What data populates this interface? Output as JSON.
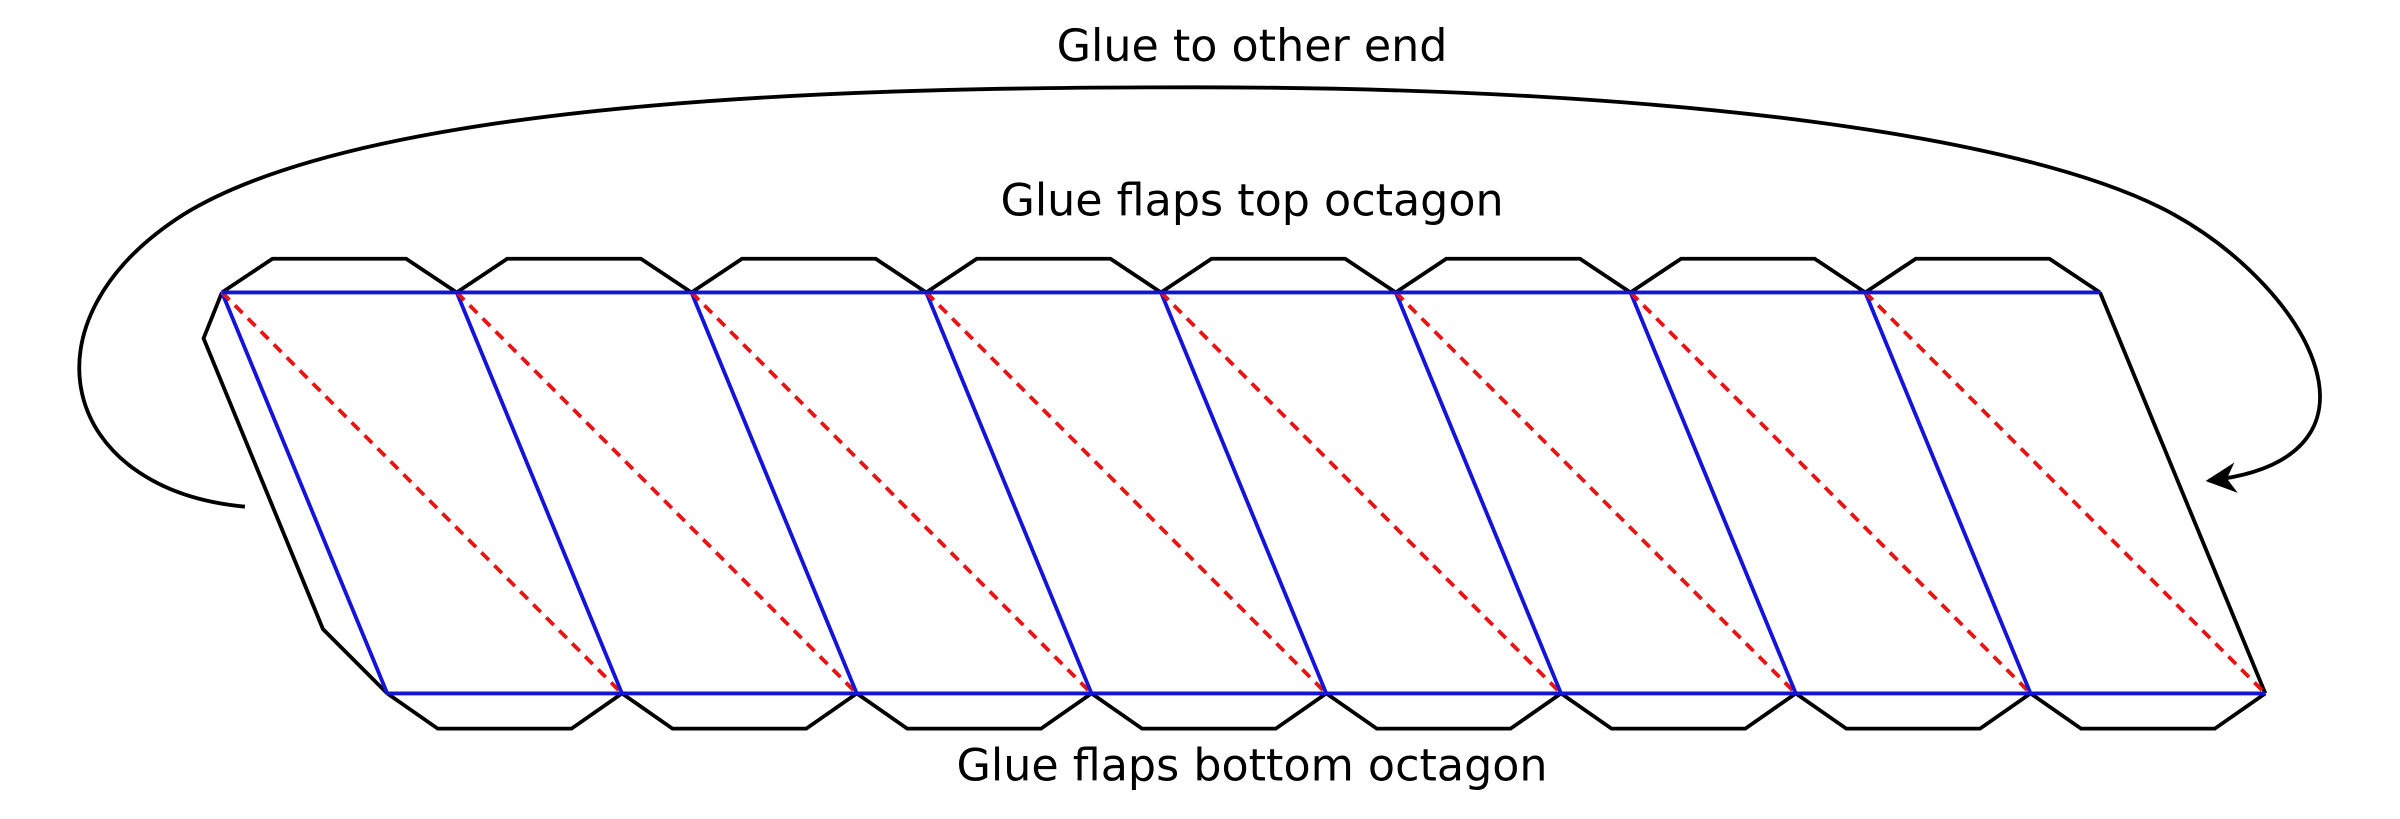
{
  "labels": {
    "glue_end": "Glue to other end",
    "top_flaps": "Glue flaps top octagon",
    "bottom_flaps": "Glue flaps bottom octagon"
  }
}
